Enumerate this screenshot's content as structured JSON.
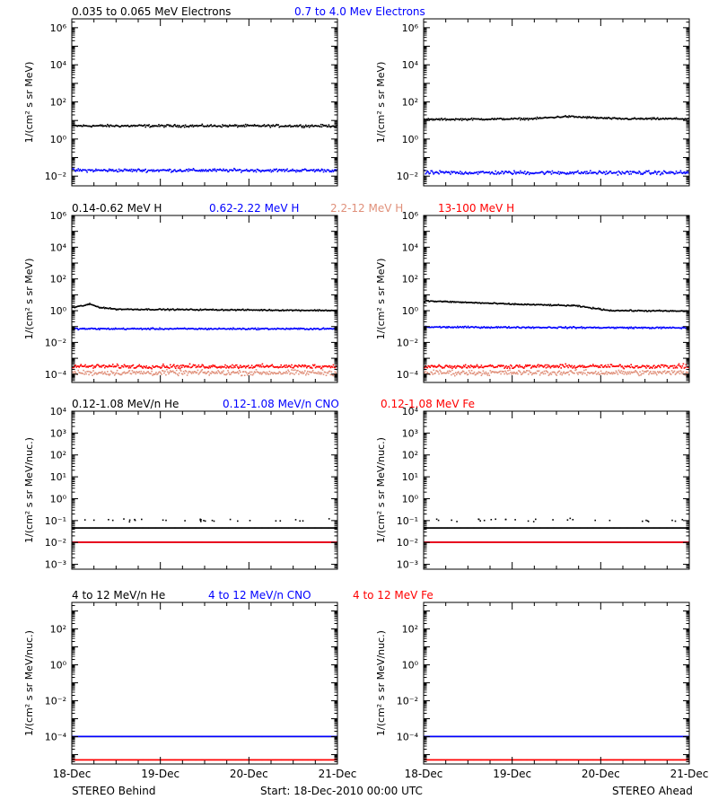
{
  "footer": {
    "left": "STEREO Behind",
    "center": "Start: 18-Dec-2010 00:00 UTC",
    "right": "STEREO Ahead"
  },
  "colors": {
    "black": "#000000",
    "blue": "#0000ff",
    "red": "#ff0000",
    "salmon": "#e0907a"
  },
  "x_tick_labels": [
    "18-Dec",
    "19-Dec",
    "20-Dec",
    "21-Dec"
  ],
  "chart_data": [
    {
      "type": "scatter",
      "row": 1,
      "ylabel": "1/(cm² s sr MeV)",
      "yscale": "log",
      "ylim": [
        0.003,
        3000000
      ],
      "yticks": [
        0.01,
        1,
        100,
        10000,
        1000000
      ],
      "ytick_labels": [
        "10⁻²",
        "10⁰",
        "10²",
        "10⁴",
        "10⁶"
      ],
      "legend": [
        {
          "name": "0.035 to 0.065 MeV Electrons",
          "color": "#000000"
        },
        {
          "name": "0.7 to 4.0 Mev Electrons",
          "color": "#0000ff"
        }
      ],
      "panels": [
        {
          "label": "STEREO Behind",
          "series": [
            {
              "name": "0.035 to 0.065 MeV Electrons",
              "color": "#000000",
              "x_days": [
                0,
                3
              ],
              "level": [
                5,
                5
              ],
              "scatter": 0.08
            },
            {
              "name": "0.7 to 4.0 Mev Electrons",
              "color": "#0000ff",
              "x_days": [
                0,
                3
              ],
              "level": [
                0.02,
                0.02
              ],
              "scatter": 0.1
            }
          ]
        },
        {
          "label": "STEREO Ahead",
          "series": [
            {
              "name": "0.035 to 0.065 MeV Electrons",
              "color": "#000000",
              "x_days": [
                0,
                1.2,
                1.6,
                2.2,
                3
              ],
              "level": [
                11,
                12,
                16,
                12,
                12
              ],
              "scatter": 0.06
            },
            {
              "name": "0.7 to 4.0 Mev Electrons",
              "color": "#0000ff",
              "x_days": [
                0,
                3
              ],
              "level": [
                0.015,
                0.015
              ],
              "scatter": 0.12
            }
          ]
        }
      ]
    },
    {
      "type": "scatter",
      "row": 2,
      "ylabel": "1/(cm² s sr MeV)",
      "yscale": "log",
      "ylim": [
        3e-05,
        1000000
      ],
      "yticks": [
        0.0001,
        0.01,
        1,
        100,
        10000,
        1000000
      ],
      "ytick_labels": [
        "10⁻⁴",
        "10⁻²",
        "10⁰",
        "10²",
        "10⁴",
        "10⁶"
      ],
      "legend": [
        {
          "name": "0.14-0.62 MeV H",
          "color": "#000000"
        },
        {
          "name": "0.62-2.22 MeV H",
          "color": "#0000ff"
        },
        {
          "name": "2.2-12 MeV H",
          "color": "#e0907a"
        },
        {
          "name": "13-100 MeV H",
          "color": "#ff0000"
        }
      ],
      "panels": [
        {
          "label": "STEREO Behind",
          "series": [
            {
              "name": "0.14-0.62 MeV H",
              "color": "#000000",
              "x_days": [
                0,
                0.2,
                0.3,
                0.5,
                3
              ],
              "level": [
                1.5,
                2.5,
                1.6,
                1.2,
                1.0
              ],
              "scatter": 0.05
            },
            {
              "name": "0.62-2.22 MeV H",
              "color": "#0000ff",
              "x_days": [
                0,
                3
              ],
              "level": [
                0.07,
                0.07
              ],
              "scatter": 0.06
            },
            {
              "name": "2.2-12 MeV H",
              "color": "#e0907a",
              "x_days": [
                0,
                3
              ],
              "level": [
                0.00012,
                0.00012
              ],
              "scatter": 0.2
            },
            {
              "name": "13-100 MeV H",
              "color": "#ff0000",
              "x_days": [
                0,
                3
              ],
              "level": [
                0.0003,
                0.0003
              ],
              "scatter": 0.15
            }
          ]
        },
        {
          "label": "STEREO Ahead",
          "series": [
            {
              "name": "0.14-0.62 MeV H",
              "color": "#000000",
              "x_days": [
                0,
                0.3,
                1.0,
                1.7,
                2.1,
                3
              ],
              "level": [
                4,
                3.5,
                2.5,
                2.0,
                1.0,
                0.9
              ],
              "scatter": 0.05
            },
            {
              "name": "0.62-2.22 MeV H",
              "color": "#0000ff",
              "x_days": [
                0,
                3
              ],
              "level": [
                0.09,
                0.08
              ],
              "scatter": 0.06
            },
            {
              "name": "2.2-12 MeV H",
              "color": "#e0907a",
              "x_days": [
                0,
                3
              ],
              "level": [
                0.00012,
                0.00012
              ],
              "scatter": 0.2
            },
            {
              "name": "13-100 MeV H",
              "color": "#ff0000",
              "x_days": [
                0,
                3
              ],
              "level": [
                0.0003,
                0.0003
              ],
              "scatter": 0.15
            }
          ]
        }
      ]
    },
    {
      "type": "scatter",
      "row": 3,
      "ylabel": "1/(cm² s sr MeV/nuc.)",
      "yscale": "log",
      "ylim": [
        0.0006,
        10000
      ],
      "yticks": [
        0.001,
        0.01,
        0.1,
        1,
        10,
        100,
        1000,
        10000
      ],
      "ytick_labels": [
        "10⁻³",
        "10⁻²",
        "10⁻¹",
        "10⁰",
        "10¹",
        "10²",
        "10³",
        "10⁴"
      ],
      "legend": [
        {
          "name": "0.12-1.08 MeV/n He",
          "color": "#000000"
        },
        {
          "name": "0.12-1.08 MeV/n CNO",
          "color": "#0000ff"
        },
        {
          "name": "0.12-1.08 MeV Fe",
          "color": "#ff0000"
        }
      ],
      "panels": [
        {
          "label": "STEREO Behind",
          "series": [
            {
              "name": "0.12-1.08 MeV/n He",
              "color": "#000000",
              "x_days": [
                0,
                3
              ],
              "level": [
                0.045,
                0.045
              ],
              "scatter": 0,
              "sparse_upper": 0.1
            },
            {
              "name": "0.12-1.08 MeV/n CNO",
              "color": "#0000ff",
              "x_days": [
                0,
                3
              ],
              "level": [
                0.01,
                0.01
              ],
              "scatter": 0
            },
            {
              "name": "0.12-1.08 MeV Fe",
              "color": "#ff0000",
              "x_days": [
                0,
                3
              ],
              "level": [
                0.01,
                0.01
              ],
              "scatter": 0
            }
          ]
        },
        {
          "label": "STEREO Ahead",
          "series": [
            {
              "name": "0.12-1.08 MeV/n He",
              "color": "#000000",
              "x_days": [
                0,
                3
              ],
              "level": [
                0.045,
                0.045
              ],
              "scatter": 0,
              "sparse_upper": 0.1
            },
            {
              "name": "0.12-1.08 MeV/n CNO",
              "color": "#0000ff",
              "x_days": [
                0,
                3
              ],
              "level": [
                0.01,
                0.01
              ],
              "scatter": 0
            },
            {
              "name": "0.12-1.08 MeV Fe",
              "color": "#ff0000",
              "x_days": [
                0,
                3
              ],
              "level": [
                0.01,
                0.01
              ],
              "scatter": 0
            }
          ]
        }
      ]
    },
    {
      "type": "scatter",
      "row": 4,
      "ylabel": "1/(cm² s sr MeV/nuc.)",
      "yscale": "log",
      "ylim": [
        3e-06,
        3000
      ],
      "yticks": [
        0.0001,
        0.01,
        1,
        100
      ],
      "ytick_labels": [
        "10⁻⁴",
        "10⁻²",
        "10⁰",
        "10²"
      ],
      "legend": [
        {
          "name": "4 to 12 MeV/n He",
          "color": "#000000"
        },
        {
          "name": "4 to 12 MeV/n CNO",
          "color": "#0000ff"
        },
        {
          "name": "4 to 12 MeV Fe",
          "color": "#ff0000"
        }
      ],
      "panels": [
        {
          "label": "STEREO Behind",
          "series": [
            {
              "name": "4 to 12 MeV/n He",
              "color": "#000000",
              "x_days": [
                0,
                3
              ],
              "level": [
                0.0001,
                0.0001
              ],
              "scatter": 0
            },
            {
              "name": "4 to 12 MeV/n CNO",
              "color": "#0000ff",
              "x_days": [
                0,
                3
              ],
              "level": [
                0.0001,
                0.0001
              ],
              "scatter": 0
            },
            {
              "name": "4 to 12 MeV Fe",
              "color": "#ff0000",
              "x_days": [
                0,
                3
              ],
              "level": [
                5e-06,
                5e-06
              ],
              "scatter": 0
            }
          ]
        },
        {
          "label": "STEREO Ahead",
          "series": [
            {
              "name": "4 to 12 MeV/n He",
              "color": "#000000",
              "x_days": [
                0,
                3
              ],
              "level": [
                0.0001,
                0.0001
              ],
              "scatter": 0
            },
            {
              "name": "4 to 12 MeV/n CNO",
              "color": "#0000ff",
              "x_days": [
                0,
                3
              ],
              "level": [
                0.0001,
                0.0001
              ],
              "scatter": 0
            },
            {
              "name": "4 to 12 MeV Fe",
              "color": "#ff0000",
              "x_days": [
                0,
                3
              ],
              "level": [
                5e-06,
                5e-06
              ],
              "scatter": 0
            }
          ]
        }
      ]
    }
  ]
}
